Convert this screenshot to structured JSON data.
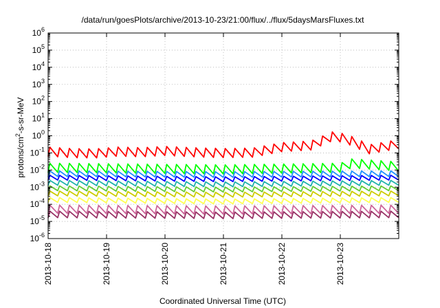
{
  "chart_data": {
    "type": "line",
    "title": "/data/run/goesPlots/archive/2013-10-23/21:00/flux/../flux/5daysMarsFluxes.txt",
    "xlabel": "Coordinated Universal Time (UTC)",
    "ylabel_prefix": "protons/cm",
    "ylabel_sup": "2",
    "ylabel_suffix": "-s-sr-MeV",
    "y_scale": "log",
    "ylim": [
      1e-06,
      1000000
    ],
    "xlim": [
      "2013-10-18",
      "2013-10-24"
    ],
    "x_tick_labels": [
      "2013-10-18",
      "2013-10-19",
      "2013-10-20",
      "2013-10-21",
      "2013-10-22",
      "2013-10-23"
    ],
    "y_ticks": [
      {
        "base": "10",
        "exp": "-6"
      },
      {
        "base": "10",
        "exp": "-5"
      },
      {
        "base": "10",
        "exp": "-4"
      },
      {
        "base": "10",
        "exp": "-3"
      },
      {
        "base": "10",
        "exp": "-2"
      },
      {
        "base": "10",
        "exp": "-1"
      },
      {
        "base": "10",
        "exp": "0"
      },
      {
        "base": "10",
        "exp": "1"
      },
      {
        "base": "10",
        "exp": "2"
      },
      {
        "base": "10",
        "exp": "3"
      },
      {
        "base": "10",
        "exp": "4"
      },
      {
        "base": "10",
        "exp": "5"
      },
      {
        "base": "10",
        "exp": "6"
      }
    ],
    "grid": true,
    "legend": "none",
    "sawtooth_cycles_per_day": 6,
    "series": [
      {
        "color": "#ff0000",
        "peak_env": [
          [
            0,
            0.22
          ],
          [
            0.4,
            0.18
          ],
          [
            0.8,
            0.17
          ],
          [
            1.2,
            0.22
          ],
          [
            1.6,
            0.2
          ],
          [
            2.0,
            0.24
          ],
          [
            2.5,
            0.2
          ],
          [
            3.0,
            0.18
          ],
          [
            3.5,
            0.19
          ],
          [
            4.0,
            0.4
          ],
          [
            4.5,
            0.5
          ],
          [
            4.9,
            1.9
          ],
          [
            5.2,
            0.9
          ],
          [
            5.5,
            0.3
          ],
          [
            6.0,
            0.6
          ]
        ],
        "amp": 0.55
      },
      {
        "color": "#00ff00",
        "peak_env": [
          [
            0,
            0.025
          ],
          [
            3,
            0.02
          ],
          [
            5,
            0.025
          ],
          [
            5.2,
            0.045
          ],
          [
            6,
            0.03
          ]
        ],
        "amp": 0.55
      },
      {
        "color": "#1e90ff",
        "peak_env": [
          [
            0,
            0.009
          ],
          [
            3,
            0.008
          ],
          [
            6,
            0.009
          ]
        ],
        "amp": 0.35
      },
      {
        "color": "#0000ff",
        "peak_env": [
          [
            0,
            0.005
          ],
          [
            3,
            0.004
          ],
          [
            6,
            0.005
          ]
        ],
        "amp": 0.3
      },
      {
        "color": "#20b2aa",
        "peak_env": [
          [
            0,
            0.0025
          ],
          [
            3,
            0.002
          ],
          [
            6,
            0.0025
          ]
        ],
        "amp": 0.3
      },
      {
        "color": "#66cc33",
        "peak_env": [
          [
            0,
            0.0012
          ],
          [
            3,
            0.001
          ],
          [
            6,
            0.0012
          ]
        ],
        "amp": 0.3
      },
      {
        "color": "#cccc00",
        "peak_env": [
          [
            0,
            0.0006
          ],
          [
            3,
            0.0005
          ],
          [
            6,
            0.0006
          ]
        ],
        "amp": 0.3
      },
      {
        "color": "#ffff55",
        "peak_env": [
          [
            0,
            0.00025
          ],
          [
            3,
            0.0002
          ],
          [
            6,
            0.00025
          ]
        ],
        "amp": 0.3
      },
      {
        "color": "#cc6699",
        "peak_env": [
          [
            0,
            9e-05
          ],
          [
            3,
            8e-05
          ],
          [
            6,
            9e-05
          ]
        ],
        "amp": 0.5
      },
      {
        "color": "#993366",
        "peak_env": [
          [
            0,
            4e-05
          ],
          [
            3,
            3.5e-05
          ],
          [
            6,
            4e-05
          ]
        ],
        "amp": 0.4
      }
    ]
  }
}
